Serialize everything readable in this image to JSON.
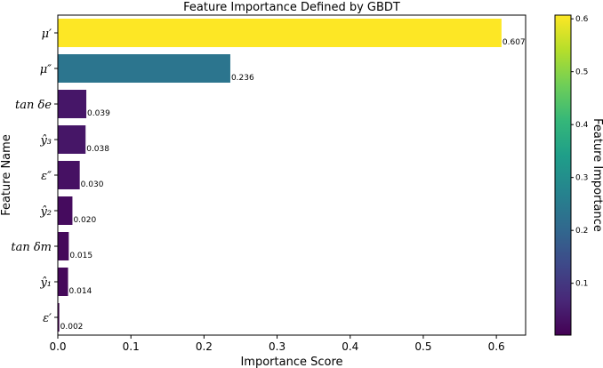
{
  "chart_data": {
    "type": "bar",
    "orientation": "horizontal",
    "title": "Feature Importance Defined by GBDT",
    "xlabel": "Importance Score",
    "ylabel": "Feature Name",
    "xlim": [
      0,
      0.64
    ],
    "xticks": [
      "0.0",
      "0.1",
      "0.2",
      "0.3",
      "0.4",
      "0.5",
      "0.6"
    ],
    "grid": false,
    "categories": [
      "μ′",
      "μ″",
      "tan δe",
      "ŷ₃",
      "ε″",
      "ŷ₂",
      "tan δm",
      "ŷ₁",
      "ε′"
    ],
    "values": [
      0.607,
      0.236,
      0.039,
      0.038,
      0.03,
      0.02,
      0.015,
      0.014,
      0.002
    ],
    "value_labels": [
      "0.607",
      "0.236",
      "0.039",
      "0.038",
      "0.030",
      "0.020",
      "0.015",
      "0.014",
      "0.002"
    ],
    "colormap": "viridis",
    "colorbar": {
      "label": "Feature Importance",
      "range": [
        0.002,
        0.607
      ],
      "ticks": [
        "0.1",
        "0.2",
        "0.3",
        "0.4",
        "0.5",
        "0.6"
      ],
      "colors": [
        "#440154",
        "#482878",
        "#3e4989",
        "#31688e",
        "#26828e",
        "#1f9e89",
        "#35b779",
        "#6ece58",
        "#b5de2b",
        "#fde725"
      ]
    }
  }
}
